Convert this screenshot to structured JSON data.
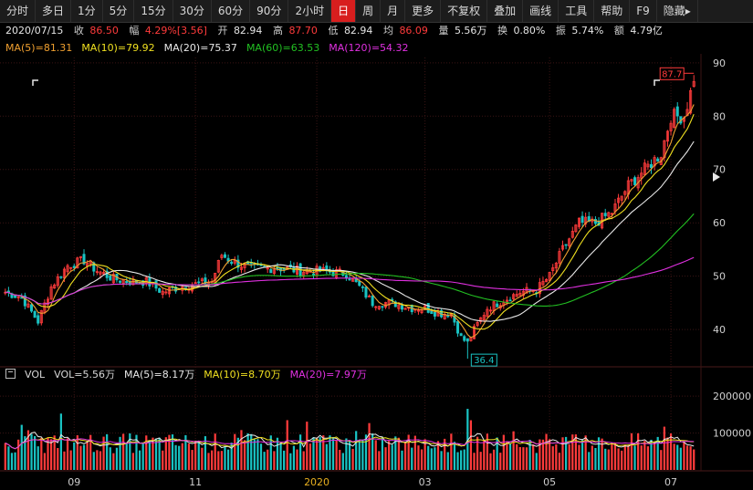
{
  "toolbar": {
    "items": [
      "分时",
      "多日",
      "1分",
      "5分",
      "15分",
      "30分",
      "60分",
      "90分",
      "2小时",
      "日",
      "周",
      "月",
      "更多",
      "不复权",
      "叠加",
      "画线",
      "工具",
      "帮助",
      "F9",
      "隐藏▸"
    ],
    "active_index": 9
  },
  "quote": {
    "date": "2020/07/15",
    "close_label": "收",
    "close": "86.50",
    "change_label": "幅",
    "change": "4.29%[3.56]",
    "open_label": "开",
    "open": "82.94",
    "high_label": "高",
    "high": "87.70",
    "low_label": "低",
    "low": "82.94",
    "avg_label": "均",
    "avg": "86.09",
    "volume_label": "量",
    "volume": "5.56万",
    "turnover_label": "换",
    "turnover": "0.80%",
    "amplitude_label": "振",
    "amplitude": "5.74%",
    "amount_label": "额",
    "amount": "4.79亿"
  },
  "ma_legend": [
    {
      "text": "MA(5)=81.31",
      "color": "#f0a030"
    },
    {
      "text": "MA(10)=79.92",
      "color": "#f0e020"
    },
    {
      "text": "MA(20)=75.37",
      "color": "#e8e8e8"
    },
    {
      "text": "MA(60)=63.53",
      "color": "#22c022"
    },
    {
      "text": "MA(120)=54.32",
      "color": "#e030e0"
    }
  ],
  "vol_legend": [
    {
      "text": "VOL",
      "color": "#d8d8d8"
    },
    {
      "text": "VOL=5.56万",
      "color": "#d8d8d8"
    },
    {
      "text": "MA(5)=8.17万",
      "color": "#e8e8e8"
    },
    {
      "text": "MA(10)=8.70万",
      "color": "#f0e020"
    },
    {
      "text": "MA(20)=7.97万",
      "color": "#e030e0"
    }
  ],
  "colors": {
    "up": "#ff3b3b",
    "down": "#19c3c3",
    "grid": "#3a1414",
    "axis_text": "#d0d0d0"
  },
  "chart_data": {
    "type": "candlestick",
    "price_axis": {
      "ticks": [
        40,
        50,
        60,
        70,
        80,
        90
      ],
      "range": [
        33,
        91
      ]
    },
    "volume_axis": {
      "ticks": [
        100000,
        200000
      ],
      "tick_labels": [
        "100000",
        "200000"
      ],
      "range": [
        0,
        235000
      ]
    },
    "x_ticks": [
      {
        "label": "09",
        "index": 21
      },
      {
        "label": "11",
        "index": 58
      },
      {
        "label": "2020",
        "index": 95,
        "highlight": true
      },
      {
        "label": "03",
        "index": 128
      },
      {
        "label": "05",
        "index": 166
      },
      {
        "label": "07",
        "index": 203
      }
    ],
    "bar_count": 211,
    "annotations": {
      "max_label": "87.7",
      "max_value": 87.7,
      "min_label": "36.4",
      "min_value": 36.4
    },
    "price_path_anchors": [
      [
        0,
        47
      ],
      [
        5,
        46
      ],
      [
        10,
        41.5
      ],
      [
        14,
        48
      ],
      [
        19,
        52
      ],
      [
        24,
        53
      ],
      [
        28,
        51
      ],
      [
        33,
        49.5
      ],
      [
        38,
        49
      ],
      [
        43,
        49
      ],
      [
        48,
        47
      ],
      [
        53,
        48
      ],
      [
        58,
        48.5
      ],
      [
        63,
        49
      ],
      [
        66,
        54
      ],
      [
        70,
        52.5
      ],
      [
        75,
        51.5
      ],
      [
        80,
        51.5
      ],
      [
        85,
        51.5
      ],
      [
        90,
        51
      ],
      [
        96,
        51
      ],
      [
        104,
        50.5
      ],
      [
        108,
        48
      ],
      [
        112,
        45
      ],
      [
        118,
        45
      ],
      [
        124,
        44
      ],
      [
        128,
        44
      ],
      [
        132,
        43
      ],
      [
        136,
        43
      ],
      [
        139,
        38.5
      ],
      [
        141,
        37.5
      ],
      [
        143,
        40
      ],
      [
        147,
        44
      ],
      [
        152,
        45.5
      ],
      [
        157,
        47
      ],
      [
        162,
        47.5
      ],
      [
        166,
        50
      ],
      [
        170,
        55
      ],
      [
        175,
        60
      ],
      [
        180,
        60
      ],
      [
        185,
        62
      ],
      [
        190,
        67
      ],
      [
        195,
        70
      ],
      [
        200,
        73
      ],
      [
        203,
        80
      ],
      [
        207,
        80
      ],
      [
        210,
        86.5
      ]
    ],
    "ma_values_last": {
      "ma5": 81.31,
      "ma10": 79.92,
      "ma20": 75.37,
      "ma60": 63.53,
      "ma120": 54.32
    },
    "volume_values_last": {
      "vol": 55600,
      "ma5": 81700,
      "ma10": 87000,
      "ma20": 79700
    }
  }
}
